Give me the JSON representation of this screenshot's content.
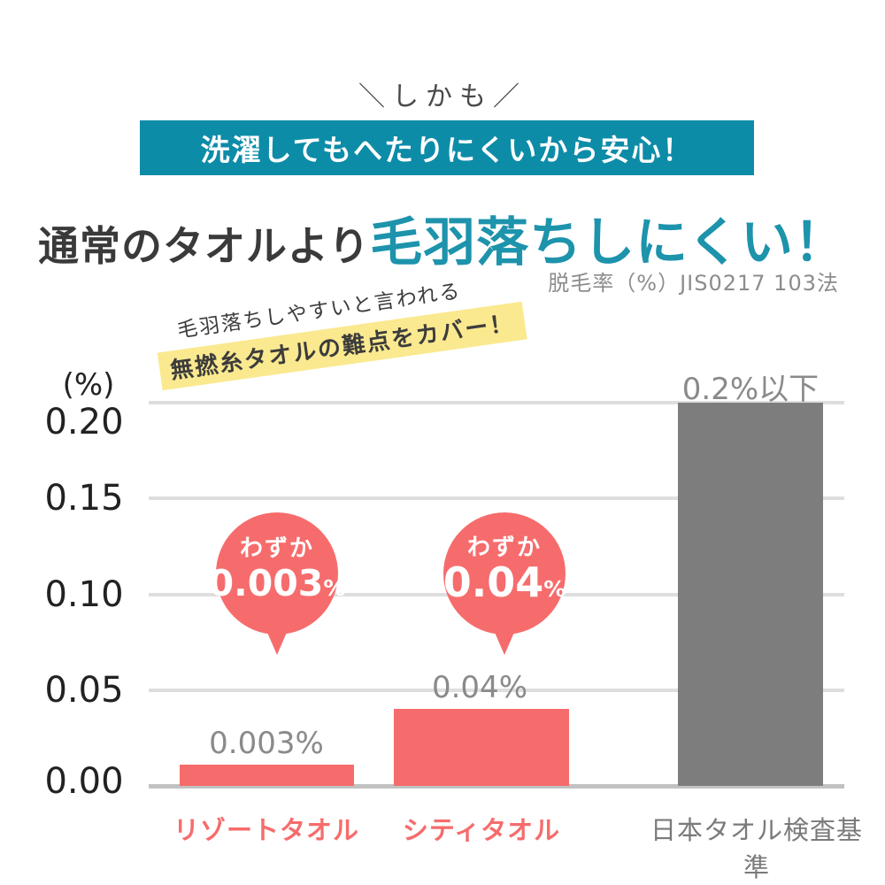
{
  "page": {
    "catchphrase": "＼しかも／",
    "banner": "洗濯してもへたりにくいから安心！",
    "headline": {
      "normal": "通常のタオルより",
      "accent": "毛羽落ちしにくい！"
    },
    "method_note": "脱毛率（%）JIS0217 103法",
    "annotation": {
      "line1": "毛羽落ちしやすいと言われる",
      "line2": "無撚糸タオルの難点をカバー！"
    }
  },
  "colors": {
    "banner_teal": "#0d8ca8",
    "accent_teal": "#1d93ac",
    "pink": "#f66c6c",
    "gray_bar": "#7d7d7d",
    "value_gray": "#8a8a8a",
    "highlight_yellow": "#fae98f",
    "gridline": "#dedede"
  },
  "chart_data": {
    "type": "bar",
    "title": "通常のタオルより毛羽落ちしにくい！",
    "unit_label": "(%)",
    "categories": [
      "リゾートタオル",
      "シティタオル",
      "日本タオル検査基準"
    ],
    "values": [
      0.003,
      0.04,
      0.2
    ],
    "value_labels": [
      "0.003%",
      "0.04%",
      "0.2%以下"
    ],
    "bar_colors": [
      "#f66c6c",
      "#f66c6c",
      "#7d7d7d"
    ],
    "y_ticks": [
      "0.20",
      "0.15",
      "0.10",
      "0.05",
      "0.00"
    ],
    "ylim": [
      0,
      0.2
    ],
    "grid": true,
    "legend_position": "none",
    "note": "脱毛率（%）JIS0217 103法",
    "callouts": [
      {
        "prefix": "わずか",
        "value": "0.003",
        "unit": "%"
      },
      {
        "prefix": "わずか",
        "value": "0.04",
        "unit": "%"
      }
    ]
  }
}
